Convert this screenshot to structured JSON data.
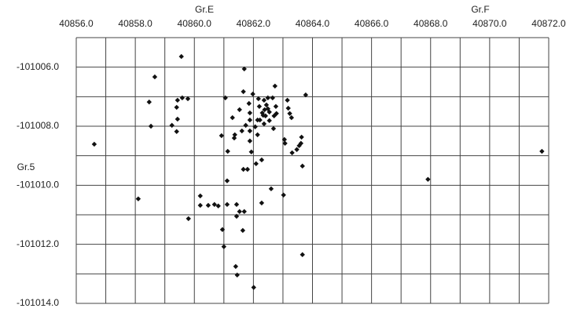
{
  "chart_data": {
    "type": "scatter",
    "annotations": [
      "Gr.E",
      "Gr.F",
      "Gr.5"
    ],
    "xlim": [
      40856,
      40872
    ],
    "ylim": [
      -101014,
      -101005
    ],
    "xticks": [
      {
        "value": 40856,
        "label": "40856.0"
      },
      {
        "value": 40858,
        "label": "40858.0"
      },
      {
        "value": 40860,
        "label": "40860.0"
      },
      {
        "value": 40862,
        "label": "40862.0"
      },
      {
        "value": 40864,
        "label": "40864.0"
      },
      {
        "value": 40866,
        "label": "40866.0"
      },
      {
        "value": 40868,
        "label": "40868.0"
      },
      {
        "value": 40870,
        "label": "40870.0"
      },
      {
        "value": 40872,
        "label": "40872.0"
      }
    ],
    "yticks": [
      {
        "value": -101006,
        "label": "-101006.0"
      },
      {
        "value": -101008,
        "label": "-101008.0"
      },
      {
        "value": -101010,
        "label": "-101010.0"
      },
      {
        "value": -101012,
        "label": "-101012.0"
      },
      {
        "value": -101014,
        "label": "-101014.0"
      }
    ],
    "xgrid": [
      40856,
      40857,
      40858,
      40859,
      40860,
      40861,
      40862,
      40863,
      40864,
      40865,
      40866,
      40867,
      40868,
      40869,
      40870,
      40871,
      40872
    ],
    "ygrid": [
      -101005,
      -101006,
      -101007,
      -101008,
      -101009,
      -101010,
      -101011,
      -101012,
      -101013,
      -101014
    ],
    "color": "#111111",
    "x": [
      40856.61,
      40858.1,
      40858.66,
      40858.47,
      40858.53,
      40859.24,
      40859.43,
      40859.4,
      40859.4,
      40859.43,
      40859.56,
      40859.59,
      40859.78,
      40859.8,
      40860.2,
      40860.2,
      40860.47,
      40860.68,
      40860.81,
      40860.92,
      40860.95,
      40861.0,
      40861.05,
      40861.11,
      40861.11,
      40861.13,
      40861.29,
      40861.35,
      40861.37,
      40861.43,
      40861.43,
      40861.53,
      40861.53,
      40861.61,
      40861.64,
      40861.66,
      40861.66,
      40861.69,
      40861.69,
      40861.74,
      40861.8,
      40861.85,
      40861.88,
      40861.88,
      40861.88,
      40861.88,
      40861.93,
      40861.98,
      40862.01,
      40862.06,
      40862.09,
      40862.14,
      40862.14,
      40862.17,
      40862.2,
      40862.22,
      40862.28,
      40862.28,
      40862.3,
      40862.33,
      40862.36,
      40862.36,
      40862.38,
      40862.41,
      40862.44,
      40862.49,
      40862.49,
      40862.54,
      40862.54,
      40862.6,
      40862.65,
      40862.68,
      40862.7,
      40862.73,
      40862.76,
      40862.78,
      40863.02,
      40863.05,
      40863.07,
      40863.15,
      40863.18,
      40863.23,
      40863.29,
      40863.31,
      40863.47,
      40863.55,
      40863.61,
      40863.63,
      40863.66,
      40863.66,
      40863.77,
      40867.91,
      40871.77,
      40861.4,
      40861.45
    ],
    "values": [
      -101008.61,
      -101010.46,
      -101006.33,
      -101007.18,
      -101008.0,
      -101007.97,
      -101007.76,
      -101008.18,
      -101007.36,
      -101007.12,
      -101005.64,
      -101007.04,
      -101007.07,
      -101011.13,
      -101010.36,
      -101010.68,
      -101010.68,
      -101010.65,
      -101010.7,
      -101008.32,
      -101011.5,
      -101012.08,
      -101007.04,
      -101009.85,
      -101010.65,
      -101008.85,
      -101007.71,
      -101008.4,
      -101008.29,
      -101010.65,
      -101011.05,
      -101007.44,
      -101010.89,
      -101008.16,
      -101011.53,
      -101006.83,
      -101009.46,
      -101006.06,
      -101010.89,
      -101007.97,
      -101009.46,
      -101007.23,
      -101007.55,
      -101007.79,
      -101008.16,
      -101008.5,
      -101008.87,
      -101006.91,
      -101013.46,
      -101008.02,
      -101009.27,
      -101008.29,
      -101007.79,
      -101007.07,
      -101007.33,
      -101007.79,
      -101009.14,
      -101010.6,
      -101007.55,
      -101007.63,
      -101007.12,
      -101007.92,
      -101007.44,
      -101007.65,
      -101007.28,
      -101007.04,
      -101007.41,
      -101007.52,
      -101007.81,
      -101010.12,
      -101007.04,
      -101008.08,
      -101007.65,
      -101006.64,
      -101007.33,
      -101007.57,
      -101010.33,
      -101008.45,
      -101008.58,
      -101007.12,
      -101007.39,
      -101007.57,
      -101007.71,
      -101008.9,
      -101008.79,
      -101008.66,
      -101008.58,
      -101008.37,
      -101009.35,
      -101012.35,
      -101006.94,
      -101009.8,
      -101008.85,
      -101012.75,
      -101013.04
    ]
  }
}
